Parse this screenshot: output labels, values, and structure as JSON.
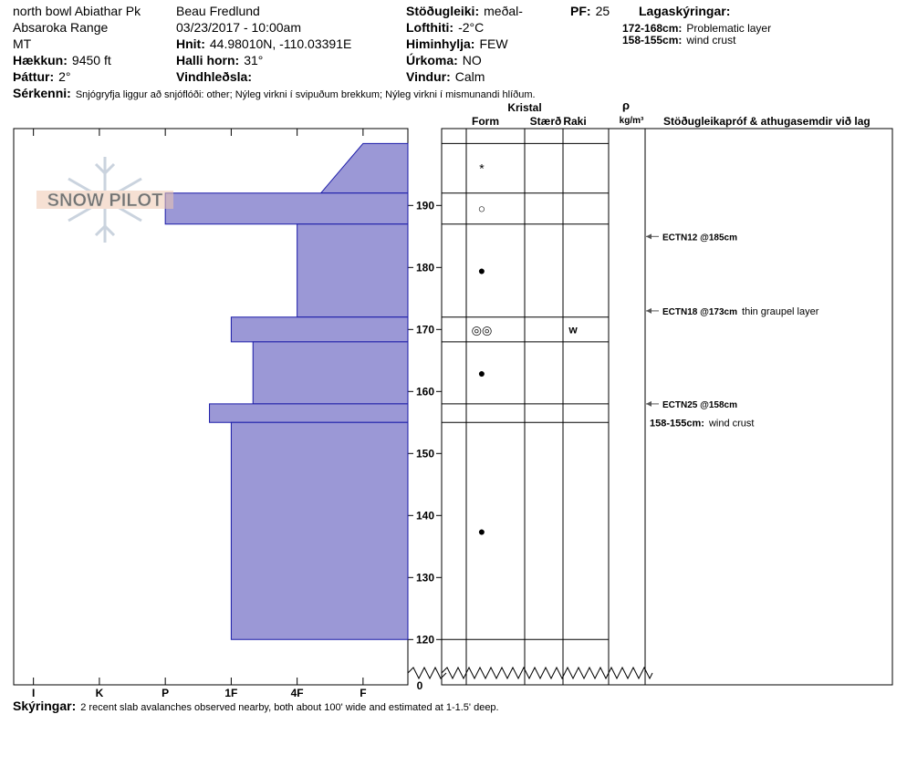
{
  "header": {
    "location": "north bowl Abiathar Pk",
    "range": "Absaroka Range",
    "state": "MT",
    "elevation": {
      "label": "Hækkun:",
      "value": "9450 ft"
    },
    "aspect": {
      "label": "Þáttur:",
      "value": "2°"
    },
    "observer": "Beau  Fredlund",
    "datetime": "03/23/2017 - 10:00am",
    "coords": {
      "label": "Hnit:",
      "value": "44.98010N, -110.03391E"
    },
    "slope": {
      "label": "Halli horn:",
      "value": "31°"
    },
    "wind_loading": {
      "label": "Vindhleðsla:"
    },
    "stability": {
      "label": "Stöðugleiki:",
      "value": "meðal-"
    },
    "air_temp": {
      "label": "Lofthiti:",
      "value": "-2°C"
    },
    "sky": {
      "label": "Himinhylja:",
      "value": "FEW"
    },
    "precip": {
      "label": "Úrkoma:",
      "value": "NO"
    },
    "wind": {
      "label": "Vindur:",
      "value": "Calm"
    },
    "pf": {
      "label": "PF:",
      "value": "25"
    },
    "legend": {
      "title": "Lagaskýringar:",
      "items": [
        {
          "range": "172-168cm:",
          "text": "Problematic layer"
        },
        {
          "range": "158-155cm:",
          "text": "wind crust"
        }
      ]
    },
    "features": {
      "label": "Sérkenni:",
      "value": "Snjógryfja liggur að snjóflóði: other; Nýleg virkni í svipuðum brekkum; Nýleg virkni í mismunandi hlíðum."
    }
  },
  "chart_data": {
    "type": "snow-profile",
    "watermark": "SNOW PILOT",
    "xlim": [
      6.3,
      0.32
    ],
    "xticks": [
      {
        "value": 6,
        "label": "I"
      },
      {
        "value": 5,
        "label": "K"
      },
      {
        "value": 4,
        "label": "P"
      },
      {
        "value": 3,
        "label": "1F"
      },
      {
        "value": 2,
        "label": "4F"
      },
      {
        "value": 1,
        "label": "F"
      }
    ],
    "ylim": [
      114.5,
      202.4
    ],
    "yticks": [
      120,
      130,
      140,
      150,
      160,
      170,
      180,
      190
    ],
    "ground_tick": 0,
    "color": "#9b98d6",
    "columns": {
      "crystal": "Kristal",
      "form": "Form",
      "size": "Stærð",
      "moisture": "Raki",
      "density": "ρ",
      "density_unit": "kg/m³",
      "comments": "Stöðugleikapróf & athugasemdir við lag"
    },
    "layers": [
      {
        "top": 200,
        "bottom": 192,
        "hardness_top": 1,
        "hardness_bottom": 1.64,
        "form": "*"
      },
      {
        "top": 192,
        "bottom": 187,
        "hardness_top": 4,
        "hardness_bottom": 4,
        "form": "○"
      },
      {
        "top": 187,
        "bottom": 172,
        "hardness_top": 2,
        "hardness_bottom": 2,
        "form": "●"
      },
      {
        "top": 172,
        "bottom": 168,
        "hardness_top": 3,
        "hardness_bottom": 3,
        "form": "◎◎",
        "moisture": "w"
      },
      {
        "top": 168,
        "bottom": 158,
        "hardness_top": 2.67,
        "hardness_bottom": 2.67,
        "form": "●"
      },
      {
        "top": 158,
        "bottom": 155,
        "hardness_top": 3.33,
        "hardness_bottom": 3.33
      },
      {
        "top": 155,
        "bottom": 120,
        "hardness_top": 3,
        "hardness_bottom": 3,
        "form": "●"
      }
    ],
    "tests": [
      {
        "depth": 185,
        "label": "ECTN12 @185cm"
      },
      {
        "depth": 173,
        "label": "ECTN18 @173cm",
        "comment": "thin graupel layer"
      },
      {
        "depth": 158,
        "label": "ECTN25 @158cm"
      }
    ],
    "notes": [
      {
        "depth": 155,
        "range": "158-155cm:",
        "text": "wind crust"
      }
    ]
  },
  "footer": {
    "label": "Skýringar:",
    "value": "2 recent slab avalanches observed nearby, both about 100' wide and estimated at 1-1.5' deep."
  }
}
